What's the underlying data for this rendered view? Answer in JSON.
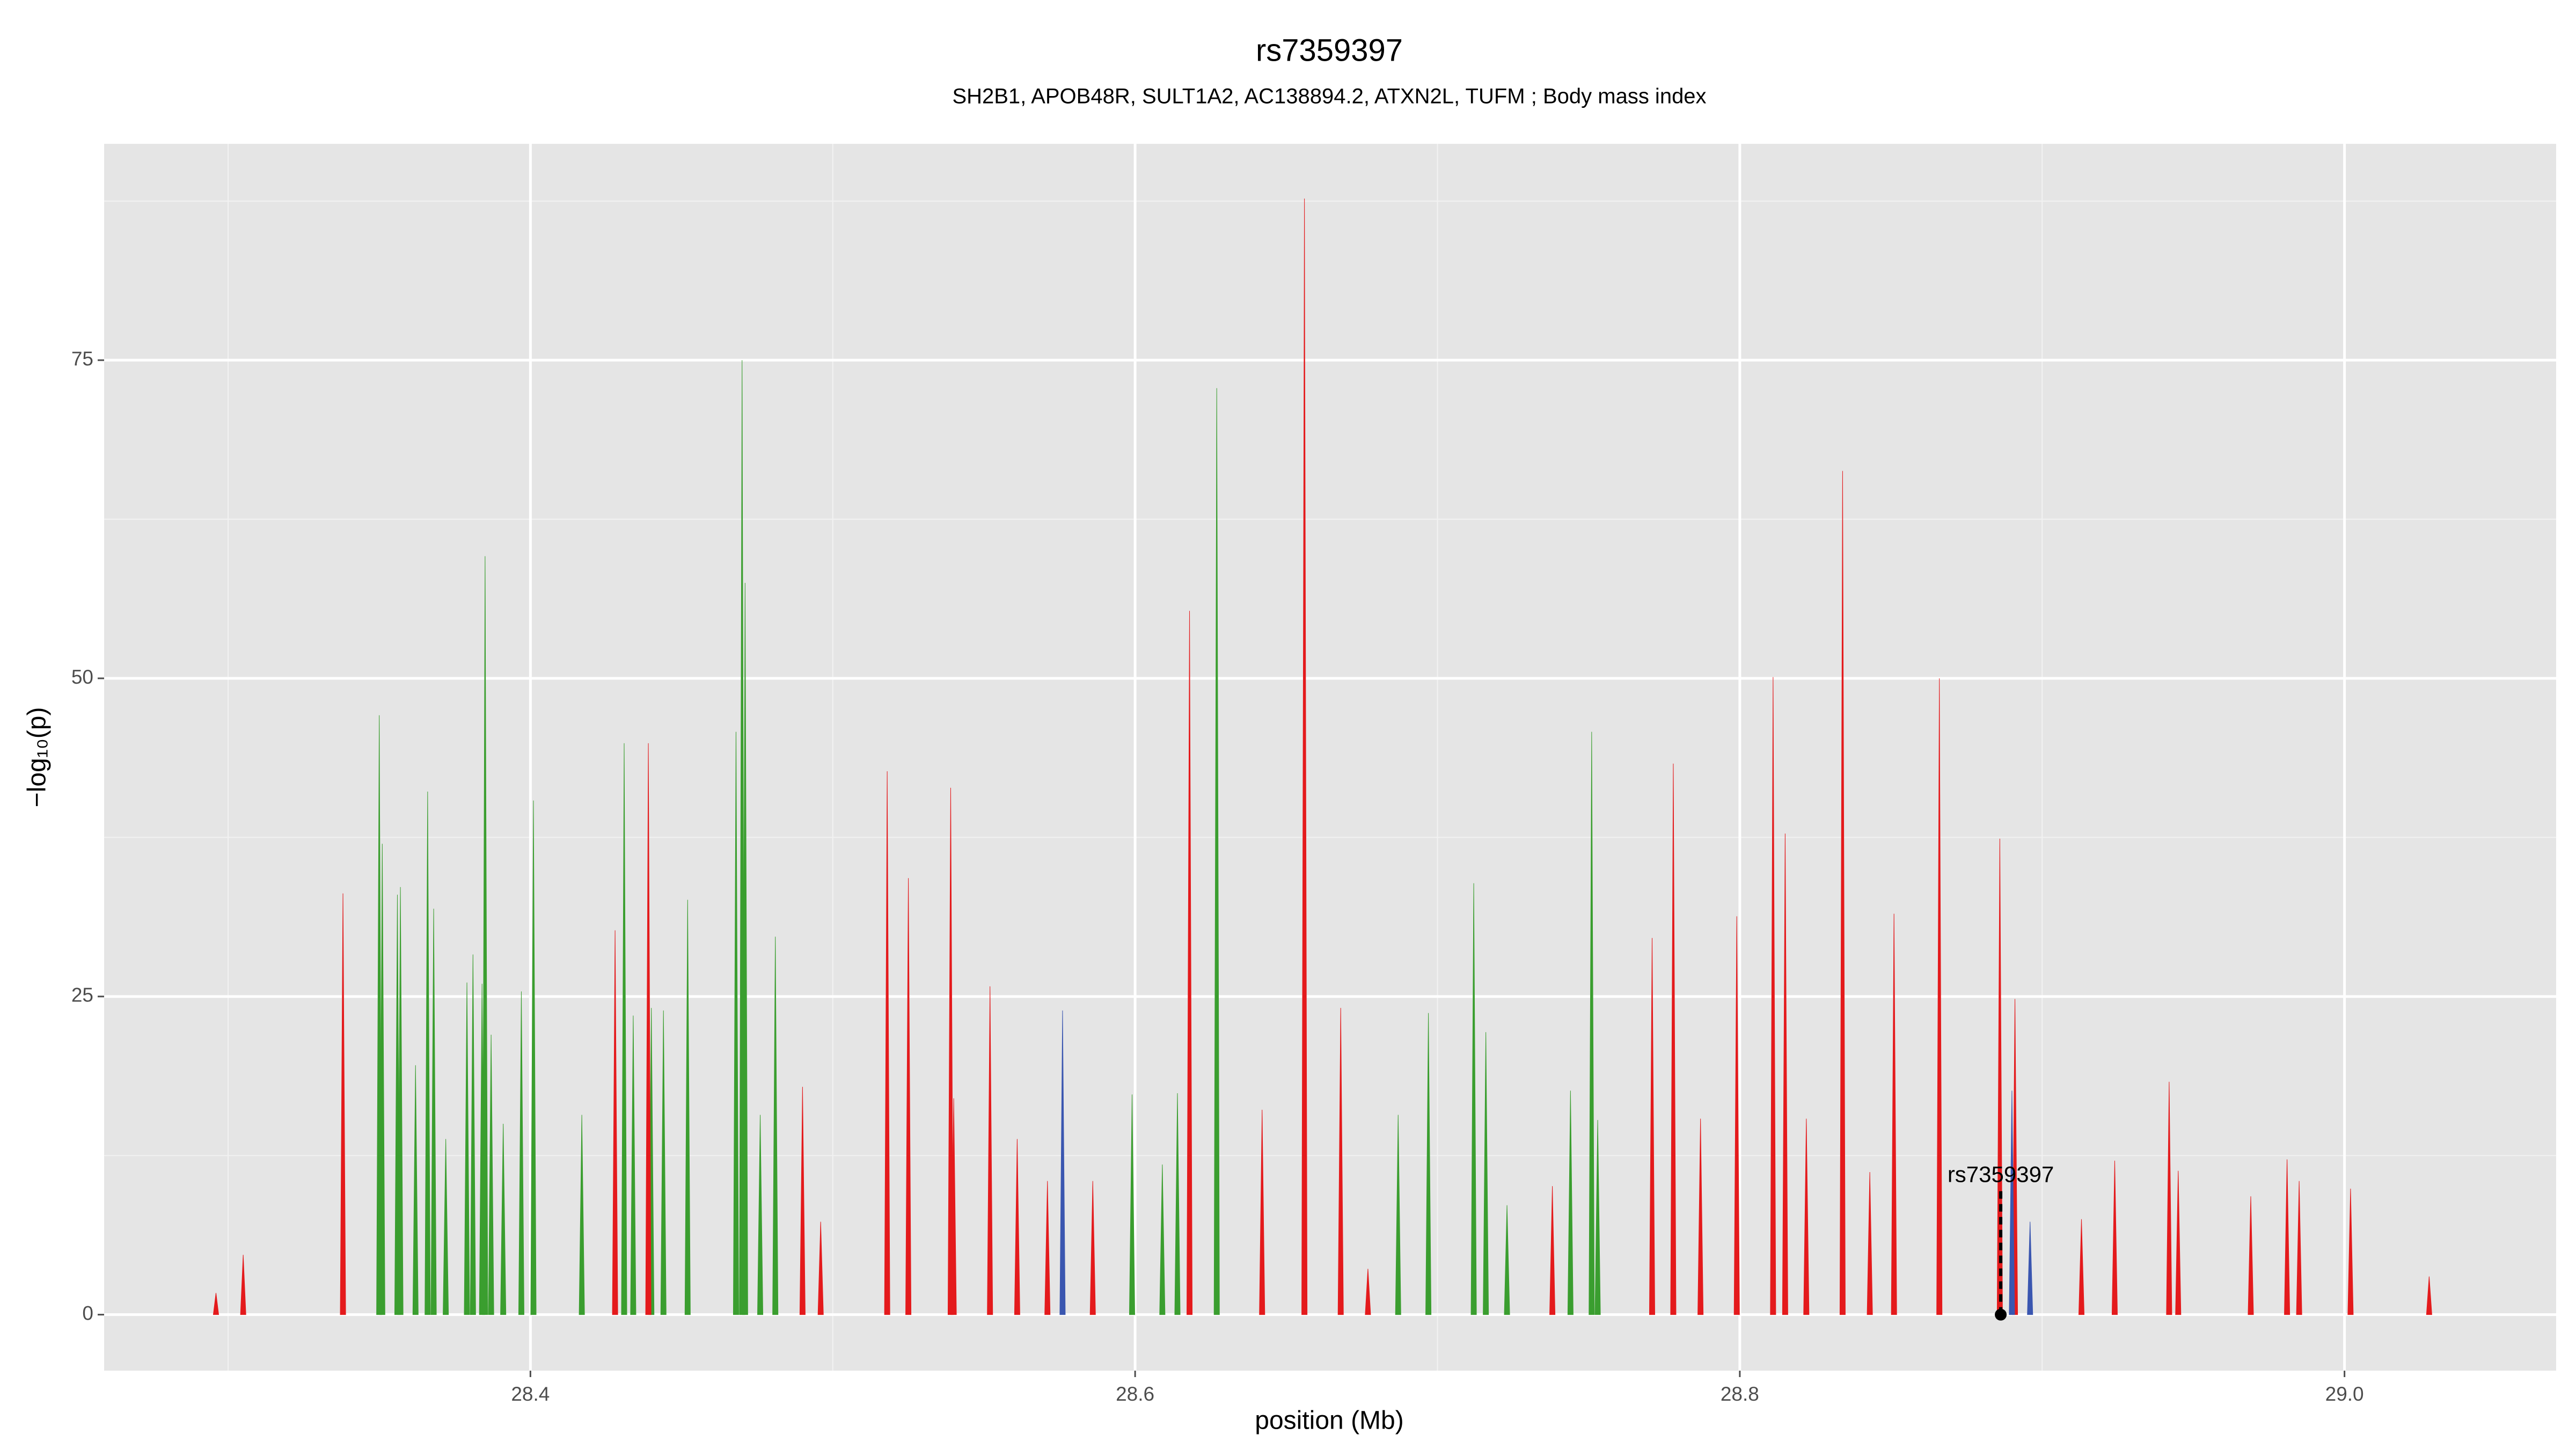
{
  "chart_data": {
    "type": "spike",
    "title": "rs7359397",
    "subtitle": "SH2B1, APOB48R, SULT1A2, AC138894.2, ATXN2L, TUFM ; Body mass index",
    "x_label": "position (Mb)",
    "y_label": "−log₁₀(p)",
    "xlim": [
      28.259,
      29.07
    ],
    "ylim": [
      -4.4,
      92
    ],
    "xticks": [
      28.4,
      28.6,
      28.8,
      {
        "value": 29,
        "label": "29.0"
      }
    ],
    "yticks": [
      0,
      25,
      50,
      75
    ],
    "x_minor": [
      28.3,
      28.5,
      28.7,
      28.9
    ],
    "y_minor": [
      12.5,
      37.5,
      62.5,
      87.5
    ],
    "grid": true,
    "series": [
      {
        "color": "#3a9e2f",
        "x": [
          28.35,
          28.351,
          28.356,
          28.357,
          28.362,
          28.366,
          28.368,
          28.372,
          28.379,
          28.381,
          28.384,
          28.385,
          28.387,
          28.391,
          28.397,
          28.401,
          28.417,
          28.431,
          28.434,
          28.44,
          28.444,
          28.452,
          28.468,
          28.47,
          28.471,
          28.476,
          28.481,
          28.599,
          28.609,
          28.614,
          28.627,
          28.687,
          28.697,
          28.712,
          28.716,
          28.723,
          28.744,
          28.751,
          28.753
        ],
        "values": [
          47.1,
          37,
          33,
          33.6,
          19.6,
          41.1,
          31.9,
          13.8,
          26.1,
          28.3,
          26,
          59.6,
          22,
          15,
          25.4,
          40.4,
          15.7,
          44.9,
          23.5,
          24.1,
          23.9,
          32.6,
          45.8,
          75,
          57.5,
          15.7,
          29.7,
          17.3,
          11.8,
          17.4,
          72.8,
          15.7,
          23.7,
          33.9,
          22.2,
          8.6,
          17.6,
          45.8,
          15.3
        ]
      },
      {
        "color": "#e41a1c",
        "x": [
          28.296,
          28.305,
          28.338,
          28.428,
          28.439,
          28.49,
          28.496,
          28.518,
          28.525,
          28.539,
          28.54,
          28.552,
          28.561,
          28.571,
          28.586,
          28.618,
          28.642,
          28.656,
          28.668,
          28.677,
          28.738,
          28.771,
          28.778,
          28.787,
          28.799,
          28.811,
          28.815,
          28.822,
          28.834,
          28.843,
          28.851,
          28.866,
          28.886,
          28.891,
          28.913,
          28.924,
          28.942,
          28.945,
          28.969,
          28.981,
          28.985,
          29.002,
          29.028
        ],
        "values": [
          1.7,
          4.7,
          33.1,
          30.2,
          44.9,
          17.9,
          7.3,
          42.7,
          34.3,
          41.4,
          17,
          25.8,
          13.8,
          10.5,
          10.5,
          55.3,
          16.1,
          87.7,
          24.1,
          3.6,
          10.1,
          29.6,
          43.3,
          15.4,
          31.3,
          50.1,
          37.8,
          15.4,
          66.3,
          11.2,
          31.5,
          50,
          37.4,
          24.8,
          7.5,
          12.1,
          18.3,
          11.3,
          9.3,
          12.2,
          10.5,
          9.9,
          3
        ]
      },
      {
        "color": "#3a56b0",
        "x": [
          28.576,
          28.89,
          28.896
        ],
        "values": [
          23.9,
          17.6,
          7.3
        ]
      }
    ],
    "annotation": {
      "text": "rs7359397",
      "x": 28.8863,
      "y": 0,
      "label_y": 10.9
    }
  }
}
